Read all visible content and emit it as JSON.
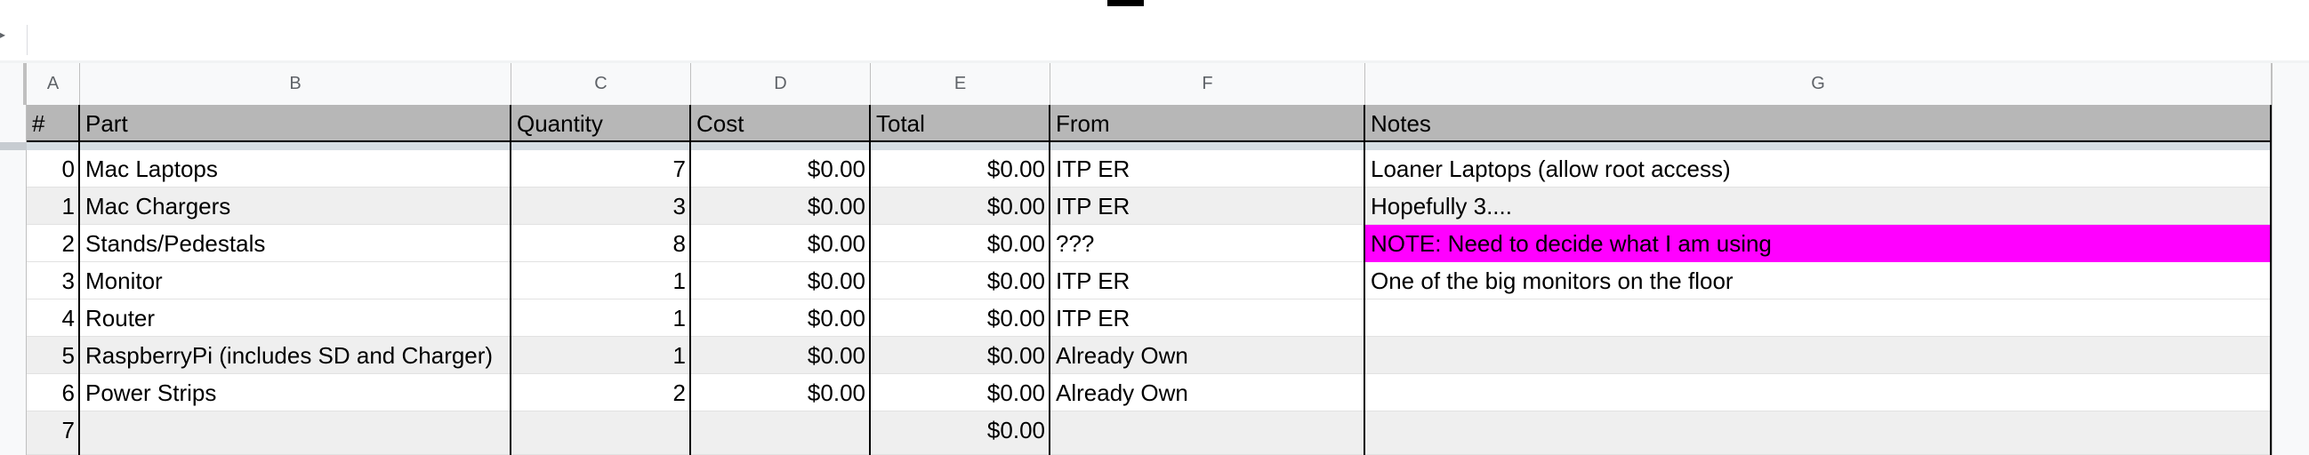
{
  "columns": [
    "A",
    "B",
    "C",
    "D",
    "E",
    "F",
    "G"
  ],
  "header": [
    "#",
    "Part",
    "Quantity",
    "Cost",
    "Total",
    "From",
    "Notes"
  ],
  "rows": [
    {
      "num": "0",
      "part": "Mac Laptops",
      "qty": "7",
      "cost": "$0.00",
      "total": "$0.00",
      "from": "ITP ER",
      "notes": "Loaner Laptops (allow root access)",
      "highlight": false
    },
    {
      "num": "1",
      "part": "Mac Chargers",
      "qty": "3",
      "cost": "$0.00",
      "total": "$0.00",
      "from": "ITP ER",
      "notes": "Hopefully 3....",
      "highlight": false
    },
    {
      "num": "2",
      "part": "Stands/Pedestals",
      "qty": "8",
      "cost": "$0.00",
      "total": "$0.00",
      "from": "???",
      "notes": "NOTE: Need to decide what I am using",
      "highlight": true
    },
    {
      "num": "3",
      "part": "Monitor",
      "qty": "1",
      "cost": "$0.00",
      "total": "$0.00",
      "from": "ITP ER",
      "notes": "One of the big monitors on the floor",
      "highlight": false
    },
    {
      "num": "4",
      "part": "Router",
      "qty": "1",
      "cost": "$0.00",
      "total": "$0.00",
      "from": "ITP ER",
      "notes": "",
      "highlight": false
    },
    {
      "num": "5",
      "part": "RaspberryPi (includes SD and Charger)",
      "qty": "1",
      "cost": "$0.00",
      "total": "$0.00",
      "from": "Already Own",
      "notes": "",
      "highlight": false
    },
    {
      "num": "6",
      "part": "Power Strips",
      "qty": "2",
      "cost": "$0.00",
      "total": "$0.00",
      "from": "Already Own",
      "notes": "",
      "highlight": false
    },
    {
      "num": "7",
      "part": "",
      "qty": "",
      "cost": "",
      "total": "$0.00",
      "from": "",
      "notes": "",
      "highlight": false
    }
  ],
  "colors": {
    "header_fill": "#b7b7b7",
    "alt_row": "#efefef",
    "highlight": "#ff00ff"
  }
}
